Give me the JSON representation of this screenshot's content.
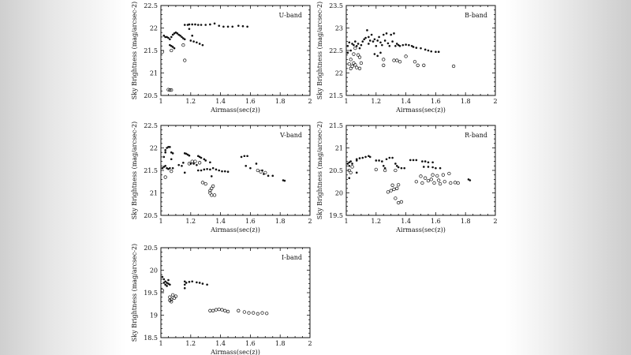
{
  "figure": {
    "xlabel": "Airmass(sec(z))",
    "ylabel": "Sky Brightness (mag/arcsec-2)"
  },
  "chart_data": [
    {
      "type": "scatter",
      "label": "U-band",
      "xlabel": "Airmass(sec(z))",
      "ylabel": "Sky Brightness (mag/arcsec-2)",
      "xlim": [
        1,
        2
      ],
      "ylim": [
        20.5,
        22.5
      ],
      "xticks": [
        1,
        1.2,
        1.4,
        1.6,
        1.8,
        2
      ],
      "yticks": [
        20.5,
        21,
        21.5,
        22,
        22.5
      ],
      "grid": false,
      "filled": [
        [
          1.02,
          21.83
        ],
        [
          1.03,
          21.8
        ],
        [
          1.04,
          21.8
        ],
        [
          1.05,
          21.78
        ],
        [
          1.06,
          21.75
        ],
        [
          1.07,
          21.8
        ],
        [
          1.08,
          21.85
        ],
        [
          1.09,
          21.88
        ],
        [
          1.1,
          21.9
        ],
        [
          1.11,
          21.88
        ],
        [
          1.12,
          21.85
        ],
        [
          1.13,
          21.83
        ],
        [
          1.14,
          21.8
        ],
        [
          1.15,
          21.77
        ],
        [
          1.16,
          21.75
        ],
        [
          1.07,
          21.6
        ],
        [
          1.08,
          21.58
        ],
        [
          1.06,
          21.62
        ],
        [
          1.09,
          21.55
        ],
        [
          1.16,
          22.07
        ],
        [
          1.18,
          22.07
        ],
        [
          1.19,
          22.08
        ],
        [
          1.21,
          22.08
        ],
        [
          1.23,
          22.08
        ],
        [
          1.25,
          22.07
        ],
        [
          1.27,
          22.07
        ],
        [
          1.3,
          22.07
        ],
        [
          1.33,
          22.08
        ],
        [
          1.36,
          22.1
        ],
        [
          1.39,
          22.05
        ],
        [
          1.42,
          22.03
        ],
        [
          1.45,
          22.03
        ],
        [
          1.48,
          22.03
        ],
        [
          1.52,
          22.05
        ],
        [
          1.55,
          22.04
        ],
        [
          1.58,
          22.03
        ],
        [
          1.19,
          21.98
        ],
        [
          1.21,
          21.83
        ],
        [
          1.2,
          21.72
        ],
        [
          1.22,
          21.7
        ],
        [
          1.24,
          21.68
        ],
        [
          1.26,
          21.65
        ],
        [
          1.28,
          21.62
        ]
      ],
      "open": [
        [
          1.01,
          21.47
        ],
        [
          1.07,
          21.5
        ],
        [
          1.15,
          21.62
        ],
        [
          1.16,
          21.28
        ],
        [
          1.05,
          20.63
        ],
        [
          1.06,
          20.62
        ],
        [
          1.07,
          20.62
        ]
      ]
    },
    {
      "type": "scatter",
      "label": "B-band",
      "xlabel": "Airmass(sec(z))",
      "ylabel": "Sky Brightness (mag/arcsec-2)",
      "xlim": [
        1,
        2
      ],
      "ylim": [
        21.5,
        23.5
      ],
      "xticks": [
        1,
        1.2,
        1.4,
        1.6,
        1.8,
        2
      ],
      "yticks": [
        21.5,
        22,
        22.5,
        23,
        23.5
      ],
      "grid": false,
      "filled": [
        [
          1.01,
          22.45
        ],
        [
          1.01,
          22.6
        ],
        [
          1.02,
          22.68
        ],
        [
          1.03,
          22.5
        ],
        [
          1.04,
          22.65
        ],
        [
          1.05,
          22.62
        ],
        [
          1.06,
          22.7
        ],
        [
          1.07,
          22.6
        ],
        [
          1.08,
          22.65
        ],
        [
          1.09,
          22.55
        ],
        [
          1.1,
          22.62
        ],
        [
          1.11,
          22.7
        ],
        [
          1.12,
          22.75
        ],
        [
          1.13,
          22.78
        ],
        [
          1.14,
          22.95
        ],
        [
          1.15,
          22.8
        ],
        [
          1.15,
          22.65
        ],
        [
          1.16,
          22.72
        ],
        [
          1.17,
          22.85
        ],
        [
          1.18,
          22.7
        ],
        [
          1.19,
          22.75
        ],
        [
          1.2,
          22.6
        ],
        [
          1.21,
          22.72
        ],
        [
          1.22,
          22.8
        ],
        [
          1.23,
          22.68
        ],
        [
          1.24,
          22.62
        ],
        [
          1.25,
          22.85
        ],
        [
          1.26,
          22.72
        ],
        [
          1.27,
          22.88
        ],
        [
          1.28,
          22.66
        ],
        [
          1.29,
          22.6
        ],
        [
          1.3,
          22.85
        ],
        [
          1.31,
          22.7
        ],
        [
          1.32,
          22.88
        ],
        [
          1.33,
          22.6
        ],
        [
          1.34,
          22.65
        ],
        [
          1.35,
          22.62
        ],
        [
          1.36,
          22.6
        ],
        [
          1.38,
          22.62
        ],
        [
          1.4,
          22.63
        ],
        [
          1.42,
          22.62
        ],
        [
          1.44,
          22.6
        ],
        [
          1.45,
          22.58
        ],
        [
          1.47,
          22.56
        ],
        [
          1.5,
          22.55
        ],
        [
          1.53,
          22.52
        ],
        [
          1.55,
          22.5
        ],
        [
          1.57,
          22.48
        ],
        [
          1.6,
          22.47
        ],
        [
          1.62,
          22.47
        ],
        [
          1.19,
          22.42
        ],
        [
          1.21,
          22.38
        ],
        [
          1.23,
          22.45
        ]
      ],
      "open": [
        [
          1.02,
          22.2
        ],
        [
          1.03,
          22.1
        ],
        [
          1.04,
          22.15
        ],
        [
          1.05,
          22.22
        ],
        [
          1.06,
          22.18
        ],
        [
          1.07,
          22.12
        ],
        [
          1.08,
          22.4
        ],
        [
          1.09,
          22.1
        ],
        [
          1.1,
          22.22
        ],
        [
          1.05,
          22.42
        ],
        [
          1.03,
          22.3
        ],
        [
          1.25,
          22.3
        ],
        [
          1.25,
          22.17
        ],
        [
          1.32,
          22.28
        ],
        [
          1.34,
          22.28
        ],
        [
          1.36,
          22.25
        ],
        [
          1.4,
          22.37
        ],
        [
          1.46,
          22.25
        ],
        [
          1.48,
          22.17
        ],
        [
          1.52,
          22.17
        ],
        [
          1.72,
          22.15
        ],
        [
          1.06,
          22.55
        ],
        [
          1.09,
          22.35
        ]
      ]
    },
    {
      "type": "scatter",
      "label": "V-band",
      "xlabel": "Airmass(sec(z))",
      "ylabel": "Sky Brightness (mag/arcsec-2)",
      "xlim": [
        1,
        2
      ],
      "ylim": [
        20.5,
        22.5
      ],
      "xticks": [
        1,
        1.2,
        1.4,
        1.6,
        1.8,
        2
      ],
      "yticks": [
        20.5,
        21,
        21.5,
        22,
        22.5
      ],
      "grid": false,
      "filled": [
        [
          1.01,
          21.55
        ],
        [
          1.02,
          21.58
        ],
        [
          1.02,
          21.8
        ],
        [
          1.03,
          21.9
        ],
        [
          1.03,
          21.95
        ],
        [
          1.04,
          22.0
        ],
        [
          1.05,
          22.02
        ],
        [
          1.06,
          22.02
        ],
        [
          1.03,
          21.6
        ],
        [
          1.04,
          21.55
        ],
        [
          1.05,
          21.53
        ],
        [
          1.06,
          21.55
        ],
        [
          1.07,
          21.9
        ],
        [
          1.07,
          21.75
        ],
        [
          1.08,
          21.88
        ],
        [
          1.08,
          21.55
        ],
        [
          1.12,
          21.62
        ],
        [
          1.14,
          21.6
        ],
        [
          1.15,
          21.67
        ],
        [
          1.16,
          21.88
        ],
        [
          1.17,
          21.87
        ],
        [
          1.18,
          21.85
        ],
        [
          1.19,
          21.83
        ],
        [
          1.2,
          21.65
        ],
        [
          1.22,
          21.65
        ],
        [
          1.24,
          21.62
        ],
        [
          1.25,
          21.82
        ],
        [
          1.26,
          21.8
        ],
        [
          1.27,
          21.78
        ],
        [
          1.29,
          21.75
        ],
        [
          1.3,
          21.72
        ],
        [
          1.33,
          21.68
        ],
        [
          1.25,
          21.5
        ],
        [
          1.27,
          21.5
        ],
        [
          1.29,
          21.52
        ],
        [
          1.31,
          21.53
        ],
        [
          1.33,
          21.52
        ],
        [
          1.35,
          21.55
        ],
        [
          1.37,
          21.52
        ],
        [
          1.39,
          21.5
        ],
        [
          1.41,
          21.48
        ],
        [
          1.43,
          21.48
        ],
        [
          1.45,
          21.47
        ],
        [
          1.16,
          21.45
        ],
        [
          1.34,
          21.37
        ],
        [
          1.54,
          21.8
        ],
        [
          1.56,
          21.82
        ],
        [
          1.58,
          21.82
        ],
        [
          1.57,
          21.6
        ],
        [
          1.6,
          21.55
        ],
        [
          1.64,
          21.65
        ],
        [
          1.68,
          21.5
        ],
        [
          1.69,
          21.42
        ],
        [
          1.72,
          21.38
        ],
        [
          1.75,
          21.38
        ],
        [
          1.82,
          21.28
        ],
        [
          1.83,
          21.27
        ]
      ],
      "open": [
        [
          1.03,
          21.35
        ],
        [
          1.07,
          21.48
        ],
        [
          1.19,
          21.65
        ],
        [
          1.21,
          21.7
        ],
        [
          1.23,
          21.7
        ],
        [
          1.26,
          21.67
        ],
        [
          1.28,
          21.23
        ],
        [
          1.3,
          21.2
        ],
        [
          1.33,
          21.05
        ],
        [
          1.34,
          20.95
        ],
        [
          1.35,
          21.15
        ],
        [
          1.36,
          20.95
        ],
        [
          1.33,
          21.0
        ],
        [
          1.65,
          21.5
        ],
        [
          1.67,
          21.47
        ],
        [
          1.7,
          21.45
        ],
        [
          1.34,
          21.1
        ]
      ]
    },
    {
      "type": "scatter",
      "label": "R-band",
      "xlabel": "Airmass(sec(z))",
      "ylabel": "Sky Brightness (mag/arcsec-2)",
      "xlim": [
        1,
        2
      ],
      "ylim": [
        19.5,
        21.5
      ],
      "xticks": [
        1,
        1.2,
        1.4,
        1.6,
        1.8,
        2
      ],
      "yticks": [
        19.5,
        20,
        20.5,
        21,
        21.5
      ],
      "grid": false,
      "filled": [
        [
          1.01,
          20.65
        ],
        [
          1.02,
          20.68
        ],
        [
          1.03,
          20.7
        ],
        [
          1.04,
          20.65
        ],
        [
          1.02,
          20.6
        ],
        [
          1.07,
          20.72
        ],
        [
          1.07,
          20.75
        ],
        [
          1.09,
          20.77
        ],
        [
          1.11,
          20.78
        ],
        [
          1.13,
          20.8
        ],
        [
          1.15,
          20.82
        ],
        [
          1.16,
          20.8
        ],
        [
          1.2,
          20.72
        ],
        [
          1.22,
          20.72
        ],
        [
          1.24,
          20.7
        ],
        [
          1.25,
          20.6
        ],
        [
          1.26,
          20.55
        ],
        [
          1.27,
          20.75
        ],
        [
          1.29,
          20.78
        ],
        [
          1.31,
          20.78
        ],
        [
          1.33,
          20.65
        ],
        [
          1.34,
          20.6
        ],
        [
          1.35,
          20.57
        ],
        [
          1.37,
          20.55
        ],
        [
          1.39,
          20.55
        ],
        [
          1.43,
          20.73
        ],
        [
          1.45,
          20.73
        ],
        [
          1.47,
          20.73
        ],
        [
          1.51,
          20.7
        ],
        [
          1.53,
          20.7
        ],
        [
          1.55,
          20.68
        ],
        [
          1.58,
          20.68
        ],
        [
          1.52,
          20.58
        ],
        [
          1.55,
          20.58
        ],
        [
          1.58,
          20.57
        ],
        [
          1.6,
          20.55
        ],
        [
          1.63,
          20.55
        ],
        [
          1.82,
          20.3
        ],
        [
          1.83,
          20.28
        ],
        [
          1.07,
          20.45
        ],
        [
          1.02,
          20.33
        ]
      ],
      "open": [
        [
          1.02,
          20.5
        ],
        [
          1.03,
          20.45
        ],
        [
          1.04,
          20.58
        ],
        [
          1.2,
          20.52
        ],
        [
          1.26,
          20.5
        ],
        [
          1.33,
          20.5
        ],
        [
          1.28,
          20.02
        ],
        [
          1.3,
          20.05
        ],
        [
          1.31,
          20.17
        ],
        [
          1.32,
          20.08
        ],
        [
          1.33,
          19.88
        ],
        [
          1.34,
          20.1
        ],
        [
          1.35,
          20.18
        ],
        [
          1.35,
          19.78
        ],
        [
          1.37,
          19.8
        ],
        [
          1.47,
          20.25
        ],
        [
          1.5,
          20.37
        ],
        [
          1.51,
          20.22
        ],
        [
          1.53,
          20.33
        ],
        [
          1.55,
          20.27
        ],
        [
          1.57,
          20.3
        ],
        [
          1.58,
          20.4
        ],
        [
          1.59,
          20.22
        ],
        [
          1.61,
          20.38
        ],
        [
          1.62,
          20.28
        ],
        [
          1.63,
          20.2
        ],
        [
          1.65,
          20.4
        ],
        [
          1.66,
          20.25
        ],
        [
          1.69,
          20.43
        ],
        [
          1.7,
          20.22
        ],
        [
          1.73,
          20.23
        ],
        [
          1.75,
          20.22
        ]
      ]
    },
    {
      "type": "scatter",
      "label": "I-band",
      "xlabel": "Airmass(sec(z))",
      "ylabel": "Sky Brightness (mag/arcsec-2)",
      "xlim": [
        1,
        2
      ],
      "ylim": [
        18.5,
        20.5
      ],
      "xticks": [
        1,
        1.2,
        1.4,
        1.6,
        1.8,
        2
      ],
      "yticks": [
        18.5,
        19,
        19.5,
        20,
        20.5
      ],
      "grid": false,
      "filled": [
        [
          1.01,
          19.85
        ],
        [
          1.02,
          19.8
        ],
        [
          1.03,
          19.75
        ],
        [
          1.04,
          19.72
        ],
        [
          1.05,
          19.7
        ],
        [
          1.03,
          19.68
        ],
        [
          1.04,
          19.65
        ],
        [
          1.06,
          19.68
        ],
        [
          1.02,
          19.72
        ],
        [
          1.05,
          19.78
        ],
        [
          1.16,
          19.6
        ],
        [
          1.16,
          19.68
        ],
        [
          1.16,
          19.75
        ],
        [
          1.17,
          19.72
        ],
        [
          1.19,
          19.74
        ],
        [
          1.21,
          19.75
        ],
        [
          1.24,
          19.73
        ],
        [
          1.26,
          19.72
        ],
        [
          1.28,
          19.7
        ],
        [
          1.31,
          19.68
        ]
      ],
      "open": [
        [
          1.01,
          19.55
        ],
        [
          1.06,
          19.4
        ],
        [
          1.07,
          19.35
        ],
        [
          1.07,
          19.3
        ],
        [
          1.08,
          19.45
        ],
        [
          1.09,
          19.38
        ],
        [
          1.1,
          19.42
        ],
        [
          1.06,
          19.33
        ],
        [
          1.33,
          19.1
        ],
        [
          1.35,
          19.1
        ],
        [
          1.37,
          19.12
        ],
        [
          1.39,
          19.13
        ],
        [
          1.41,
          19.12
        ],
        [
          1.43,
          19.1
        ],
        [
          1.45,
          19.08
        ],
        [
          1.52,
          19.1
        ],
        [
          1.56,
          19.07
        ],
        [
          1.59,
          19.05
        ],
        [
          1.62,
          19.05
        ],
        [
          1.65,
          19.03
        ],
        [
          1.68,
          19.05
        ],
        [
          1.71,
          19.04
        ]
      ]
    }
  ]
}
